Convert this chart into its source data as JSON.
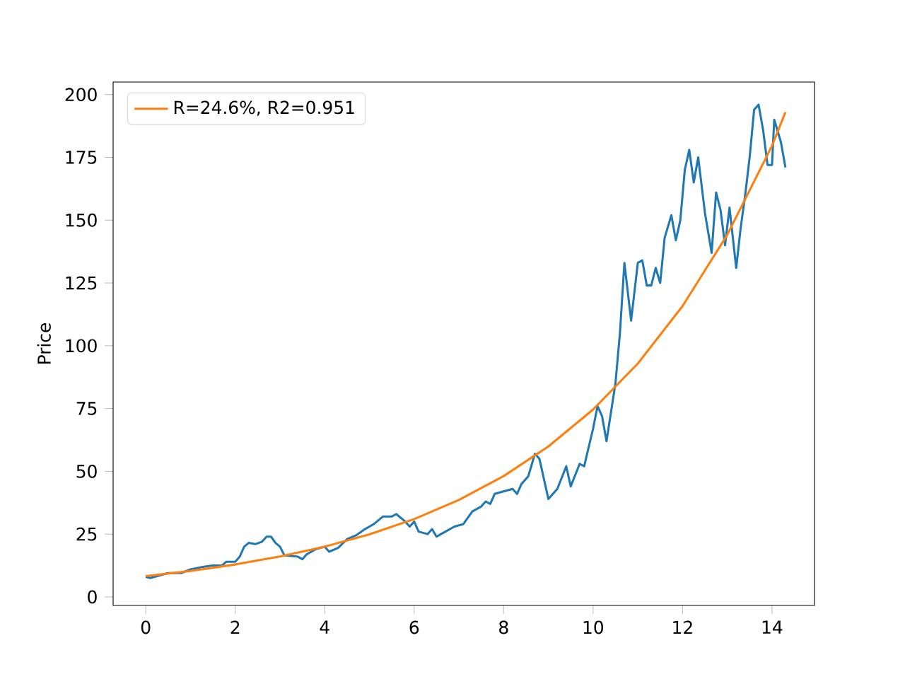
{
  "chart_data": {
    "type": "line",
    "ylabel": "Price",
    "xlim": [
      -0.73,
      14.95
    ],
    "ylim": [
      -3.4,
      205
    ],
    "xticks": [
      0,
      2,
      4,
      6,
      8,
      10,
      12,
      14
    ],
    "yticks": [
      0,
      25,
      50,
      75,
      100,
      125,
      150,
      175,
      200
    ],
    "grid": false,
    "legend": "top left",
    "marker": "none",
    "line_style": "solid",
    "series": [
      {
        "color": "#1f77b4",
        "x": [
          0,
          0.1,
          0.3,
          0.5,
          0.8,
          1.0,
          1.3,
          1.5,
          1.7,
          1.8,
          2.0,
          2.1,
          2.2,
          2.3,
          2.45,
          2.6,
          2.7,
          2.8,
          2.9,
          3.0,
          3.1,
          3.4,
          3.5,
          3.6,
          3.8,
          4.0,
          4.1,
          4.3,
          4.5,
          4.7,
          4.9,
          5.0,
          5.1,
          5.3,
          5.5,
          5.6,
          5.8,
          5.9,
          6.0,
          6.1,
          6.3,
          6.4,
          6.5,
          6.7,
          6.9,
          7.1,
          7.3,
          7.5,
          7.6,
          7.7,
          7.8,
          8.0,
          8.2,
          8.3,
          8.4,
          8.55,
          8.7,
          8.8,
          9.0,
          9.2,
          9.4,
          9.5,
          9.7,
          9.8,
          10.0,
          10.1,
          10.2,
          10.3,
          10.5,
          10.6,
          10.7,
          10.85,
          11.0,
          11.1,
          11.2,
          11.3,
          11.4,
          11.5,
          11.6,
          11.75,
          11.85,
          11.95,
          12.05,
          12.15,
          12.25,
          12.35,
          12.5,
          12.65,
          12.75,
          12.85,
          12.95,
          13.05,
          13.2,
          13.3,
          13.4,
          13.5,
          13.6,
          13.7,
          13.8,
          13.9,
          14.0,
          14.05,
          14.2,
          14.3
        ],
        "values": [
          8,
          7.5,
          8.5,
          9.5,
          9.5,
          11,
          12,
          12.5,
          12.5,
          14,
          14,
          16,
          20,
          21.5,
          21,
          22,
          24,
          24,
          21.5,
          20,
          16.5,
          16,
          15,
          17,
          19,
          20,
          18,
          19.5,
          23,
          24.5,
          27,
          28,
          29,
          32,
          32,
          33,
          30,
          28,
          30,
          26,
          25,
          27,
          24,
          26,
          28,
          29,
          34,
          36,
          38,
          37,
          41,
          42,
          43,
          41,
          45,
          48,
          57,
          55,
          39,
          43,
          52,
          44,
          53,
          52,
          67,
          76,
          72,
          62,
          85,
          105,
          133,
          110,
          133,
          134,
          124,
          124,
          131,
          125,
          143,
          152,
          142,
          150,
          170,
          178,
          165,
          175,
          153,
          137,
          161,
          154,
          140,
          155,
          131,
          147,
          160,
          175,
          194,
          196,
          186,
          172,
          172,
          190,
          181,
          171
        ]
      },
      {
        "name": "R=24.6%, R2=0.951",
        "color": "#ff7f0e",
        "x": [
          0,
          1,
          2,
          3,
          4,
          5,
          6,
          7,
          8,
          9,
          10,
          11,
          12,
          13,
          14,
          14.3
        ],
        "values": [
          8.3,
          10.3,
          12.9,
          16.1,
          20,
          24.9,
          31,
          38.6,
          48.1,
          59.9,
          74.6,
          92.9,
          115.8,
          144.2,
          179.6,
          193
        ]
      }
    ]
  }
}
